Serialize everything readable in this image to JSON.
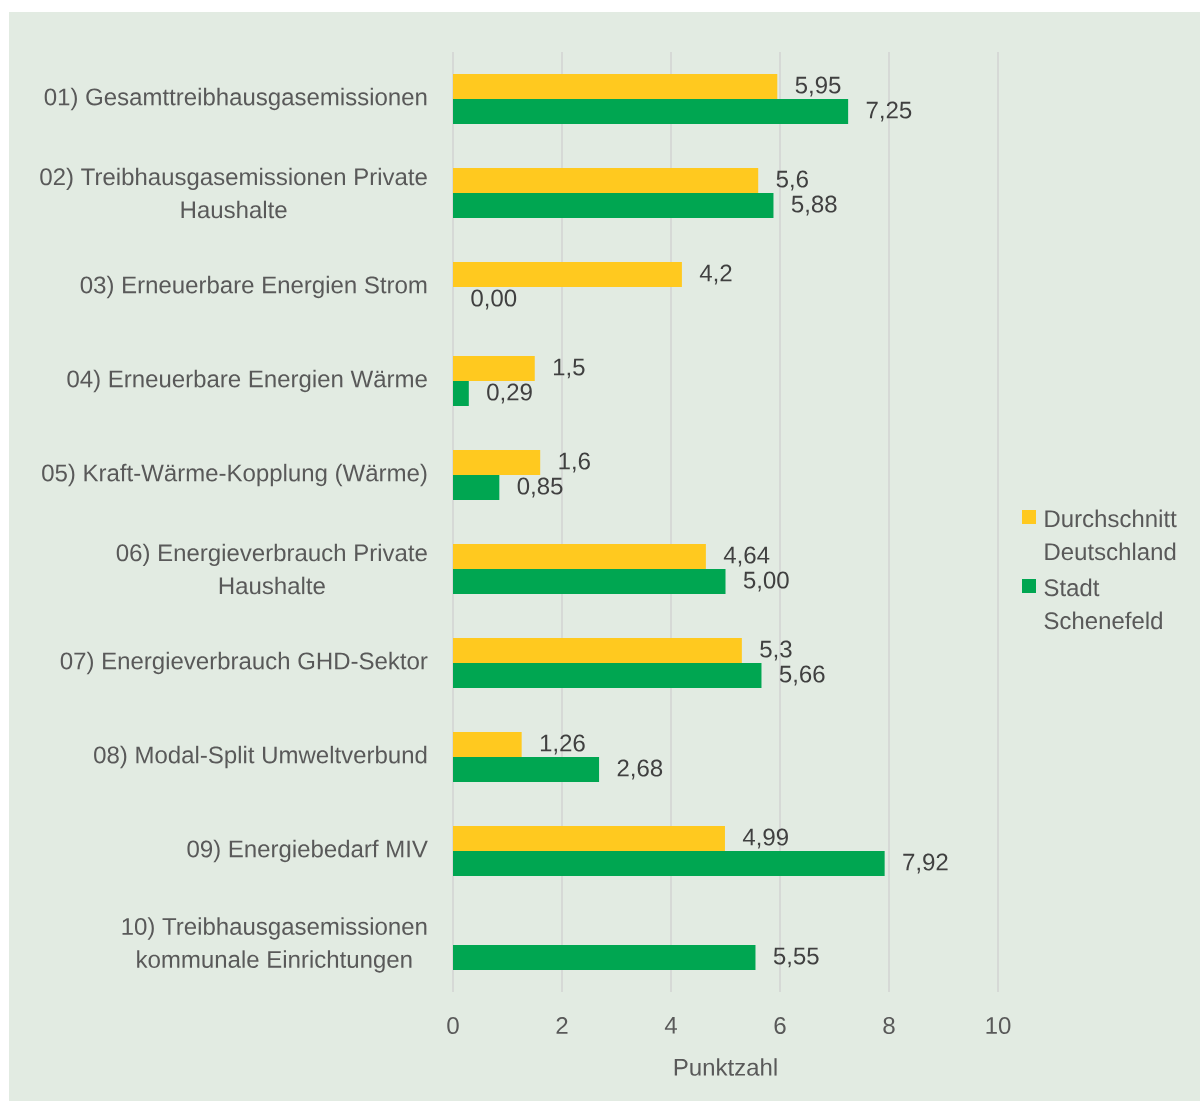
{
  "chart_data": {
    "type": "bar",
    "orientation": "horizontal",
    "xlabel": "Punktzahl",
    "categories": [
      "01) Gesamttreibhausgasemissionen",
      "02) Treibhausgasemissionen Private Haushalte",
      "03) Erneuerbare Energien Strom",
      "04) Erneuerbare Energien Wärme",
      "05) Kraft-Wärme-Kopplung (Wärme)",
      "06) Energieverbrauch Private Haushalte",
      "07) Energieverbrauch GHD-Sektor",
      "08) Modal-Split Umweltverbund",
      "09) Energiebedarf MIV",
      "10) Treibhausgasemissionen kommunale Einrichtungen"
    ],
    "series": [
      {
        "name": "Durchschnitt Deutschland",
        "color": "#ffc91f",
        "values": [
          5.95,
          5.6,
          4.2,
          1.5,
          1.6,
          4.64,
          5.3,
          1.26,
          4.99,
          null
        ],
        "value_labels": [
          "5,95",
          "5,6",
          "4,2",
          "1,5",
          "1,6",
          "4,64",
          "5,3",
          "1,26",
          "4,99",
          null
        ]
      },
      {
        "name": "Stadt Schenefeld",
        "color": "#00a651",
        "values": [
          7.25,
          5.88,
          0.0,
          0.29,
          0.85,
          5.0,
          5.66,
          2.68,
          7.92,
          5.55
        ],
        "value_labels": [
          "7,25",
          "5,88",
          "0,00",
          "0,29",
          "0,85",
          "5,00",
          "5,66",
          "2,68",
          "7,92",
          "5,55"
        ]
      }
    ],
    "xlim": [
      0,
      10
    ],
    "xticks": [
      0,
      2,
      4,
      6,
      8,
      10
    ],
    "grid": "x",
    "legend": "right"
  }
}
